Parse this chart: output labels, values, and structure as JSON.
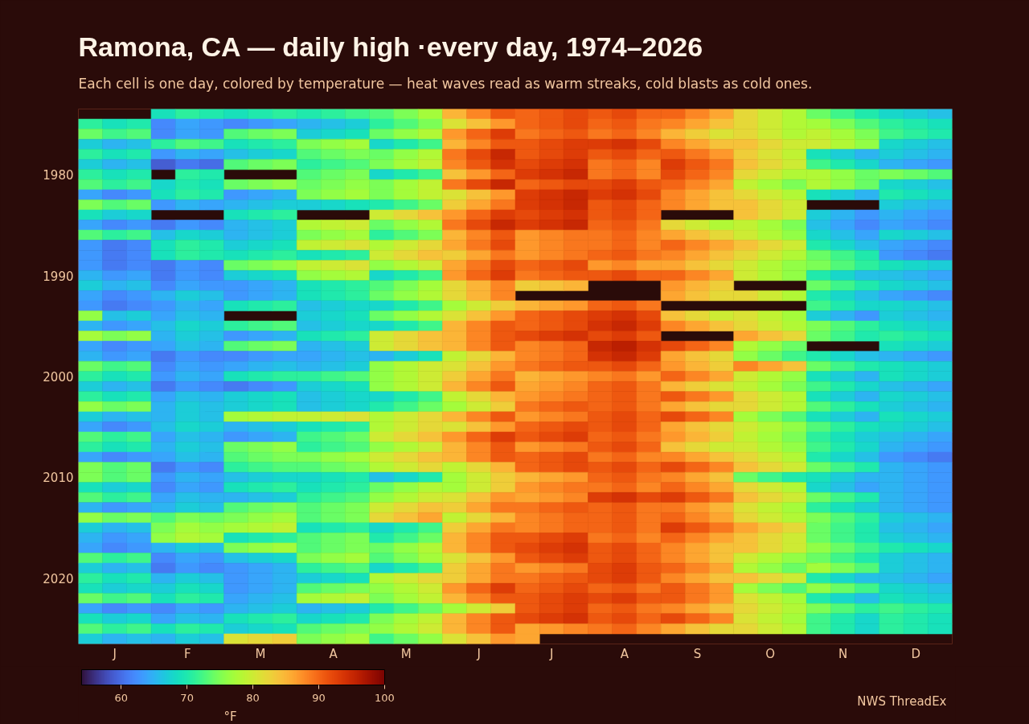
{
  "chart_data": {
    "type": "heatmap",
    "title": "Ramona, CA — daily high ·every day, 1974–2026",
    "subtitle": "Each cell is one day, colored by temperature — heat waves read as warm streaks, cold blasts as cold ones.",
    "categories": [
      null,
      "J",
      null,
      null,
      "F",
      null,
      null,
      "M",
      null,
      null,
      "A",
      null,
      null,
      "M",
      null,
      null,
      "J",
      null,
      null,
      "J",
      null,
      null,
      "A",
      null,
      null,
      "S",
      null,
      null,
      "O",
      null,
      null,
      "N",
      null,
      null,
      "D",
      null
    ],
    "y_categories": [
      null,
      null,
      null,
      null,
      null,
      null,
      "1980",
      null,
      null,
      null,
      null,
      null,
      null,
      null,
      null,
      null,
      "1990",
      null,
      null,
      null,
      null,
      null,
      null,
      null,
      null,
      null,
      "2000",
      null,
      null,
      null,
      null,
      null,
      null,
      null,
      null,
      null,
      "2010",
      null,
      null,
      null,
      null,
      null,
      null,
      null,
      null,
      null,
      "2020",
      null,
      null,
      null,
      null,
      null,
      null
    ],
    "cells": [
      [
        null,
        null,
        null,
        69,
        71,
        70,
        69,
        70,
        71,
        70,
        71,
        72,
        73,
        75,
        77,
        85,
        88,
        91,
        90,
        91,
        92,
        91,
        92,
        90,
        90,
        88,
        86,
        82,
        80,
        78,
        74,
        72,
        70,
        68,
        67,
        66
      ],
      [
        71,
        69,
        70,
        62,
        64,
        63,
        62,
        63,
        64,
        65,
        66,
        67,
        71,
        73,
        75,
        81,
        84,
        87,
        90,
        91,
        92,
        90,
        91,
        89,
        88,
        86,
        84,
        82,
        80,
        78,
        77,
        75,
        73,
        71,
        70,
        69
      ],
      [
        74,
        72,
        73,
        62,
        64,
        63,
        73,
        74,
        75,
        67,
        68,
        69,
        74,
        76,
        78,
        87,
        90,
        93,
        89,
        90,
        91,
        89,
        90,
        88,
        85,
        83,
        81,
        82,
        80,
        78,
        79,
        77,
        75,
        72,
        71,
        70
      ],
      [
        67,
        65,
        66,
        71,
        73,
        72,
        69,
        70,
        71,
        75,
        76,
        77,
        68,
        70,
        72,
        85,
        88,
        91,
        91,
        92,
        93,
        93,
        94,
        92,
        88,
        86,
        84,
        84,
        82,
        80,
        80,
        78,
        76,
        68,
        67,
        66
      ],
      [
        71,
        69,
        70,
        63,
        65,
        64,
        66,
        67,
        68,
        73,
        74,
        75,
        74,
        76,
        78,
        89,
        92,
        95,
        91,
        92,
        93,
        91,
        92,
        90,
        91,
        89,
        87,
        83,
        81,
        79,
        69,
        67,
        65,
        67,
        66,
        65
      ],
      [
        67,
        65,
        66,
        59,
        61,
        60,
        73,
        74,
        75,
        71,
        72,
        73,
        75,
        77,
        79,
        88,
        91,
        94,
        92,
        93,
        94,
        89,
        90,
        88,
        93,
        91,
        89,
        84,
        82,
        80,
        72,
        70,
        68,
        65,
        64,
        63
      ],
      [
        71,
        69,
        70,
        null,
        71,
        70,
        null,
        null,
        null,
        73,
        74,
        75,
        68,
        70,
        72,
        84,
        87,
        90,
        93,
        94,
        95,
        89,
        90,
        88,
        92,
        90,
        88,
        82,
        80,
        78,
        78,
        76,
        74,
        75,
        74,
        73
      ],
      [
        73,
        71,
        72,
        68,
        70,
        69,
        74,
        75,
        76,
        74,
        75,
        76,
        75,
        77,
        79,
        89,
        92,
        95,
        90,
        91,
        92,
        92,
        93,
        91,
        90,
        88,
        86,
        79,
        77,
        75,
        78,
        76,
        74,
        68,
        67,
        66
      ],
      [
        64,
        62,
        63,
        69,
        71,
        70,
        63,
        64,
        65,
        75,
        76,
        77,
        75,
        77,
        79,
        81,
        84,
        87,
        93,
        94,
        95,
        93,
        94,
        92,
        88,
        86,
        84,
        82,
        80,
        78,
        69,
        67,
        65,
        70,
        69,
        68
      ],
      [
        75,
        73,
        74,
        63,
        65,
        64,
        65,
        66,
        67,
        67,
        68,
        69,
        70,
        72,
        74,
        83,
        86,
        89,
        93,
        94,
        95,
        91,
        92,
        90,
        88,
        86,
        84,
        84,
        82,
        80,
        null,
        null,
        null,
        67,
        66,
        65
      ],
      [
        69,
        67,
        68,
        null,
        null,
        null,
        69,
        70,
        71,
        null,
        null,
        null,
        80,
        82,
        84,
        87,
        90,
        93,
        92,
        93,
        94,
        91,
        92,
        90,
        null,
        null,
        null,
        84,
        82,
        80,
        67,
        65,
        63,
        65,
        64,
        63
      ],
      [
        64,
        62,
        63,
        61,
        63,
        62,
        65,
        66,
        67,
        78,
        79,
        80,
        74,
        76,
        78,
        89,
        92,
        95,
        93,
        94,
        95,
        90,
        91,
        89,
        82,
        80,
        78,
        79,
        77,
        75,
        66,
        64,
        62,
        64,
        63,
        62
      ],
      [
        73,
        71,
        72,
        66,
        68,
        67,
        65,
        66,
        67,
        75,
        76,
        77,
        71,
        73,
        75,
        85,
        88,
        91,
        87,
        88,
        89,
        89,
        90,
        88,
        86,
        84,
        82,
        80,
        78,
        76,
        68,
        66,
        64,
        68,
        67,
        66
      ],
      [
        63,
        61,
        62,
        69,
        71,
        70,
        67,
        68,
        69,
        79,
        80,
        81,
        78,
        80,
        82,
        86,
        89,
        92,
        87,
        88,
        89,
        89,
        90,
        88,
        90,
        88,
        86,
        84,
        82,
        80,
        70,
        68,
        66,
        64,
        63,
        62
      ],
      [
        63,
        61,
        62,
        69,
        71,
        70,
        69,
        70,
        71,
        69,
        70,
        71,
        80,
        82,
        84,
        83,
        86,
        89,
        87,
        88,
        89,
        90,
        91,
        89,
        88,
        86,
        84,
        82,
        80,
        78,
        74,
        72,
        70,
        63,
        62,
        61
      ],
      [
        63,
        61,
        62,
        61,
        63,
        62,
        74,
        75,
        76,
        79,
        80,
        81,
        76,
        78,
        80,
        86,
        89,
        92,
        90,
        91,
        92,
        87,
        88,
        86,
        86,
        84,
        82,
        80,
        78,
        76,
        75,
        73,
        71,
        69,
        68,
        67
      ],
      [
        65,
        63,
        64,
        61,
        63,
        62,
        67,
        68,
        69,
        76,
        77,
        78,
        68,
        70,
        72,
        87,
        90,
        93,
        89,
        90,
        91,
        91,
        92,
        90,
        90,
        88,
        86,
        80,
        78,
        76,
        70,
        68,
        66,
        66,
        65,
        64
      ],
      [
        67,
        65,
        66,
        62,
        64,
        63,
        63,
        64,
        65,
        69,
        70,
        71,
        73,
        75,
        77,
        82,
        85,
        88,
        83,
        84,
        85,
        null,
        null,
        null,
        87,
        85,
        83,
        null,
        null,
        null,
        74,
        72,
        70,
        68,
        67,
        66
      ],
      [
        64,
        62,
        63,
        65,
        67,
        66,
        63,
        64,
        65,
        69,
        70,
        71,
        74,
        76,
        78,
        82,
        85,
        88,
        null,
        null,
        null,
        null,
        null,
        null,
        86,
        84,
        82,
        82,
        80,
        78,
        70,
        68,
        66,
        64,
        63,
        62
      ],
      [
        63,
        61,
        62,
        63,
        65,
        64,
        69,
        70,
        71,
        66,
        67,
        68,
        68,
        70,
        72,
        77,
        80,
        83,
        85,
        86,
        87,
        90,
        91,
        89,
        null,
        null,
        null,
        null,
        null,
        null,
        72,
        70,
        68,
        68,
        67,
        66
      ],
      [
        76,
        66,
        67,
        64,
        66,
        65,
        null,
        null,
        null,
        67,
        68,
        69,
        74,
        76,
        78,
        81,
        84,
        87,
        90,
        91,
        92,
        93,
        94,
        92,
        84,
        82,
        80,
        81,
        79,
        77,
        67,
        65,
        63,
        67,
        66,
        65
      ],
      [
        65,
        63,
        64,
        66,
        68,
        67,
        71,
        72,
        73,
        66,
        67,
        68,
        68,
        70,
        72,
        85,
        88,
        91,
        90,
        91,
        92,
        94,
        95,
        93,
        88,
        86,
        84,
        82,
        80,
        78,
        75,
        73,
        71,
        69,
        68,
        67
      ],
      [
        77,
        75,
        76,
        65,
        67,
        66,
        63,
        64,
        65,
        69,
        70,
        71,
        80,
        82,
        84,
        85,
        88,
        91,
        92,
        93,
        94,
        92,
        93,
        91,
        null,
        null,
        null,
        86,
        84,
        82,
        74,
        72,
        70,
        71,
        70,
        69
      ],
      [
        64,
        62,
        63,
        64,
        66,
        65,
        73,
        74,
        75,
        65,
        66,
        67,
        80,
        82,
        84,
        85,
        88,
        91,
        88,
        89,
        90,
        95,
        96,
        94,
        92,
        90,
        88,
        78,
        76,
        74,
        null,
        null,
        null,
        69,
        68,
        67
      ],
      [
        65,
        63,
        64,
        61,
        63,
        62,
        62,
        63,
        64,
        64,
        65,
        66,
        65,
        67,
        69,
        79,
        82,
        85,
        88,
        89,
        90,
        94,
        95,
        93,
        86,
        84,
        82,
        76,
        74,
        72,
        70,
        68,
        66,
        65,
        64,
        63
      ],
      [
        74,
        72,
        73,
        62,
        64,
        63,
        64,
        65,
        66,
        65,
        66,
        67,
        76,
        78,
        80,
        81,
        84,
        87,
        89,
        90,
        91,
        91,
        92,
        90,
        87,
        85,
        83,
        88,
        86,
        84,
        74,
        72,
        70,
        69,
        68,
        67
      ],
      [
        71,
        69,
        70,
        63,
        65,
        64,
        69,
        70,
        71,
        71,
        72,
        73,
        76,
        78,
        80,
        83,
        86,
        89,
        85,
        86,
        87,
        88,
        89,
        87,
        90,
        88,
        86,
        80,
        78,
        76,
        69,
        67,
        65,
        69,
        68,
        67
      ],
      [
        67,
        65,
        66,
        61,
        63,
        62,
        61,
        62,
        63,
        67,
        68,
        69,
        76,
        78,
        80,
        85,
        88,
        91,
        86,
        87,
        88,
        90,
        91,
        89,
        85,
        83,
        81,
        79,
        77,
        75,
        72,
        70,
        68,
        66,
        65,
        64
      ],
      [
        71,
        69,
        70,
        64,
        66,
        65,
        67,
        68,
        69,
        66,
        67,
        68,
        68,
        70,
        72,
        79,
        82,
        85,
        87,
        88,
        89,
        90,
        91,
        89,
        91,
        89,
        87,
        82,
        80,
        78,
        69,
        67,
        65,
        68,
        67,
        66
      ],
      [
        76,
        74,
        75,
        65,
        67,
        66,
        67,
        68,
        69,
        66,
        67,
        68,
        70,
        72,
        74,
        77,
        80,
        83,
        89,
        90,
        91,
        90,
        91,
        89,
        86,
        84,
        82,
        82,
        80,
        78,
        73,
        71,
        69,
        67,
        66,
        65
      ],
      [
        67,
        65,
        66,
        65,
        67,
        66,
        77,
        78,
        79,
        79,
        80,
        81,
        78,
        80,
        82,
        85,
        88,
        91,
        87,
        88,
        89,
        91,
        92,
        90,
        92,
        90,
        88,
        77,
        75,
        73,
        69,
        67,
        65,
        69,
        68,
        67
      ],
      [
        64,
        62,
        63,
        66,
        68,
        67,
        65,
        66,
        67,
        69,
        70,
        71,
        78,
        80,
        82,
        81,
        84,
        87,
        90,
        91,
        92,
        91,
        92,
        90,
        86,
        84,
        82,
        80,
        78,
        76,
        73,
        71,
        69,
        68,
        67,
        66
      ],
      [
        73,
        71,
        72,
        64,
        66,
        65,
        63,
        64,
        65,
        72,
        73,
        74,
        80,
        82,
        84,
        87,
        90,
        93,
        91,
        92,
        93,
        90,
        91,
        89,
        87,
        85,
        83,
        79,
        77,
        75,
        71,
        69,
        67,
        66,
        65,
        64
      ],
      [
        71,
        69,
        70,
        65,
        67,
        66,
        74,
        75,
        76,
        71,
        72,
        73,
        76,
        78,
        80,
        85,
        88,
        91,
        87,
        88,
        89,
        91,
        92,
        90,
        84,
        82,
        80,
        80,
        78,
        76,
        72,
        70,
        68,
        65,
        64,
        63
      ],
      [
        64,
        62,
        63,
        64,
        66,
        65,
        73,
        74,
        75,
        75,
        76,
        77,
        80,
        82,
        84,
        85,
        88,
        91,
        90,
        91,
        92,
        89,
        90,
        88,
        88,
        86,
        84,
        82,
        80,
        78,
        70,
        68,
        66,
        63,
        62,
        61
      ],
      [
        75,
        73,
        74,
        61,
        63,
        62,
        71,
        72,
        73,
        73,
        74,
        75,
        78,
        80,
        82,
        79,
        82,
        85,
        90,
        91,
        92,
        91,
        92,
        90,
        92,
        90,
        88,
        84,
        82,
        80,
        74,
        72,
        70,
        65,
        64,
        63
      ],
      [
        75,
        73,
        74,
        63,
        65,
        64,
        66,
        67,
        68,
        68,
        69,
        70,
        66,
        68,
        70,
        77,
        80,
        83,
        85,
        86,
        87,
        90,
        91,
        89,
        88,
        86,
        84,
        74,
        72,
        70,
        69,
        67,
        65,
        65,
        64,
        63
      ],
      [
        69,
        67,
        68,
        62,
        64,
        63,
        69,
        70,
        71,
        69,
        70,
        71,
        74,
        76,
        78,
        77,
        80,
        83,
        87,
        88,
        89,
        89,
        90,
        88,
        90,
        88,
        86,
        82,
        80,
        78,
        68,
        66,
        64,
        65,
        64,
        63
      ],
      [
        73,
        71,
        72,
        64,
        66,
        65,
        65,
        66,
        67,
        71,
        72,
        73,
        76,
        78,
        80,
        81,
        84,
        87,
        86,
        87,
        88,
        93,
        94,
        92,
        93,
        91,
        89,
        84,
        82,
        80,
        74,
        72,
        70,
        65,
        64,
        63
      ],
      [
        65,
        63,
        64,
        65,
        67,
        66,
        73,
        74,
        75,
        73,
        74,
        75,
        80,
        82,
        84,
        83,
        86,
        89,
        89,
        90,
        91,
        90,
        91,
        89,
        89,
        87,
        85,
        81,
        79,
        77,
        71,
        69,
        67,
        65,
        64,
        63
      ],
      [
        76,
        74,
        75,
        73,
        75,
        74,
        75,
        76,
        77,
        73,
        74,
        75,
        82,
        84,
        86,
        79,
        82,
        85,
        88,
        89,
        90,
        90,
        91,
        89,
        90,
        88,
        86,
        82,
        80,
        78,
        75,
        73,
        71,
        67,
        66,
        65
      ],
      [
        67,
        65,
        66,
        75,
        77,
        76,
        77,
        78,
        79,
        69,
        70,
        71,
        68,
        70,
        72,
        83,
        86,
        89,
        88,
        89,
        90,
        90,
        91,
        89,
        93,
        91,
        89,
        86,
        84,
        82,
        74,
        72,
        70,
        66,
        65,
        64
      ],
      [
        65,
        63,
        64,
        76,
        78,
        77,
        69,
        70,
        71,
        73,
        74,
        75,
        70,
        72,
        74,
        85,
        88,
        91,
        91,
        92,
        93,
        89,
        90,
        88,
        90,
        88,
        86,
        84,
        82,
        80,
        74,
        72,
        70,
        67,
        66,
        65
      ],
      [
        64,
        62,
        63,
        65,
        67,
        66,
        75,
        76,
        77,
        73,
        74,
        75,
        74,
        76,
        78,
        85,
        88,
        91,
        92,
        93,
        94,
        91,
        92,
        90,
        88,
        86,
        84,
        84,
        82,
        80,
        76,
        74,
        72,
        70,
        69,
        68
      ],
      [
        73,
        71,
        72,
        62,
        64,
        63,
        66,
        67,
        68,
        75,
        76,
        77,
        73,
        75,
        77,
        81,
        84,
        87,
        91,
        92,
        93,
        91,
        92,
        90,
        88,
        86,
        84,
        80,
        78,
        76,
        74,
        72,
        70,
        67,
        66,
        65
      ],
      [
        67,
        65,
        66,
        61,
        63,
        62,
        63,
        64,
        65,
        71,
        72,
        73,
        68,
        70,
        72,
        83,
        86,
        89,
        87,
        88,
        89,
        92,
        93,
        91,
        90,
        88,
        86,
        78,
        76,
        74,
        77,
        75,
        73,
        67,
        66,
        65
      ],
      [
        71,
        69,
        70,
        65,
        67,
        66,
        63,
        64,
        65,
        67,
        68,
        69,
        78,
        80,
        82,
        83,
        86,
        89,
        89,
        90,
        91,
        92,
        93,
        91,
        88,
        86,
        84,
        84,
        82,
        80,
        70,
        68,
        66,
        66,
        65,
        64
      ],
      [
        69,
        67,
        68,
        67,
        69,
        68,
        63,
        64,
        65,
        73,
        74,
        75,
        76,
        78,
        80,
        87,
        90,
        93,
        90,
        91,
        92,
        90,
        91,
        89,
        91,
        89,
        87,
        77,
        75,
        73,
        76,
        74,
        72,
        68,
        67,
        66
      ],
      [
        74,
        72,
        73,
        69,
        71,
        70,
        64,
        65,
        66,
        77,
        78,
        79,
        75,
        77,
        79,
        85,
        88,
        91,
        91,
        92,
        93,
        92,
        93,
        91,
        91,
        89,
        87,
        81,
        79,
        77,
        70,
        68,
        66,
        69,
        68,
        67
      ],
      [
        64,
        62,
        63,
        62,
        64,
        63,
        65,
        66,
        67,
        65,
        66,
        67,
        70,
        72,
        74,
        77,
        80,
        83,
        91,
        92,
        93,
        90,
        91,
        89,
        88,
        86,
        84,
        82,
        80,
        78,
        75,
        73,
        71,
        72,
        71,
        70
      ],
      [
        69,
        67,
        68,
        64,
        66,
        65,
        69,
        70,
        71,
        68,
        69,
        70,
        75,
        77,
        79,
        85,
        88,
        91,
        92,
        93,
        94,
        91,
        92,
        90,
        92,
        90,
        88,
        81,
        79,
        77,
        72,
        70,
        68,
        71,
        70,
        69
      ],
      [
        73,
        71,
        72,
        69,
        71,
        70,
        67,
        68,
        69,
        73,
        74,
        75,
        76,
        78,
        80,
        85,
        88,
        91,
        86,
        87,
        88,
        89,
        90,
        88,
        86,
        84,
        82,
        82,
        80,
        78,
        72,
        70,
        68,
        71,
        70,
        69
      ],
      [
        67,
        65,
        66,
        65,
        67,
        66,
        81,
        82,
        83,
        75,
        76,
        77,
        72,
        74,
        76,
        81,
        84,
        87,
        86,
        null,
        null,
        null,
        null,
        null,
        null,
        null,
        null,
        null,
        null,
        null,
        null,
        null,
        null,
        null,
        null,
        null
      ]
    ],
    "clim": [
      54,
      100
    ],
    "cticks": [
      60,
      70,
      80,
      90,
      100
    ],
    "clabel": "°F",
    "annotations": [
      "NWS ThreadEx"
    ]
  }
}
